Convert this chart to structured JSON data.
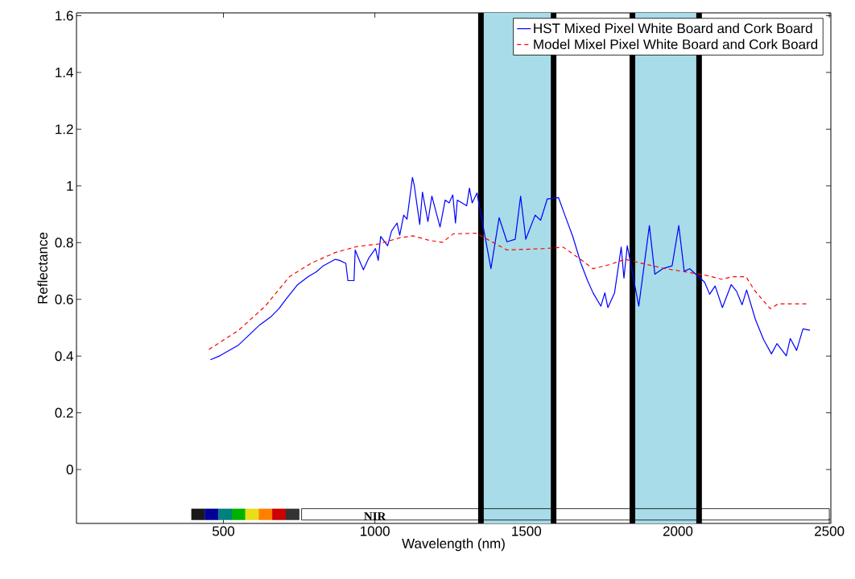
{
  "chart_data": {
    "type": "line",
    "xlabel": "Wavelength (nm)",
    "ylabel": "Reflectance",
    "xlim": [
      15,
      2505
    ],
    "ylim": [
      -0.19,
      1.61
    ],
    "xticks": [
      500,
      1000,
      1500,
      2000,
      2500
    ],
    "yticks": [
      0,
      0.2,
      0.4,
      0.6,
      0.8,
      1,
      1.2,
      1.4,
      1.6
    ],
    "legend": "top right",
    "grid": false,
    "annotations": [
      "NIR"
    ],
    "bands": [
      {
        "axis": "x",
        "from": 1350,
        "to": 1590,
        "color": "#a8dce8"
      },
      {
        "axis": "x",
        "from": 1850,
        "to": 2070,
        "color": "#a8dce8"
      }
    ],
    "series": [
      {
        "name": "HST Mixed Pixel White Board and Cork Board",
        "color": "#0000ff",
        "line_style": "solid",
        "x": [
          457,
          488,
          550,
          620,
          656,
          683,
          709,
          745,
          780,
          807,
          829,
          869,
          882,
          904,
          911,
          931,
          935,
          949,
          962,
          980,
          1002,
          1011,
          1019,
          1042,
          1055,
          1073,
          1082,
          1095,
          1106,
          1124,
          1130,
          1148,
          1157,
          1175,
          1188,
          1215,
          1232,
          1245,
          1257,
          1266,
          1272,
          1303,
          1312,
          1321,
          1337,
          1383,
          1410,
          1436,
          1463,
          1481,
          1498,
          1529,
          1547,
          1569,
          1606,
          1627,
          1653,
          1680,
          1702,
          1720,
          1746,
          1759,
          1769,
          1791,
          1813,
          1822,
          1833,
          1871,
          1906,
          1924,
          1950,
          1981,
          2003,
          2021,
          2039,
          2088,
          2105,
          2123,
          2147,
          2176,
          2194,
          2212,
          2227,
          2256,
          2283,
          2309,
          2327,
          2358,
          2371,
          2392,
          2413,
          2436
        ],
        "values": [
          0.387,
          0.401,
          0.439,
          0.51,
          0.538,
          0.567,
          0.604,
          0.652,
          0.68,
          0.697,
          0.718,
          0.741,
          0.738,
          0.727,
          0.666,
          0.666,
          0.774,
          0.737,
          0.704,
          0.746,
          0.779,
          0.737,
          0.822,
          0.789,
          0.841,
          0.869,
          0.826,
          0.897,
          0.883,
          1.03,
          1.001,
          0.864,
          0.978,
          0.874,
          0.964,
          0.855,
          0.95,
          0.94,
          0.968,
          0.869,
          0.95,
          0.93,
          0.992,
          0.94,
          0.975,
          0.708,
          0.888,
          0.803,
          0.812,
          0.964,
          0.812,
          0.897,
          0.879,
          0.954,
          0.959,
          0.897,
          0.822,
          0.727,
          0.666,
          0.623,
          0.576,
          0.623,
          0.571,
          0.623,
          0.784,
          0.675,
          0.789,
          0.576,
          0.86,
          0.689,
          0.708,
          0.718,
          0.86,
          0.699,
          0.708,
          0.661,
          0.618,
          0.647,
          0.571,
          0.652,
          0.628,
          0.581,
          0.633,
          0.529,
          0.458,
          0.408,
          0.444,
          0.401,
          0.462,
          0.42,
          0.496,
          0.491
        ]
      },
      {
        "name": "Model Mixel Pixel White Board and Cork Board",
        "color": "#ff0000",
        "line_style": "dashed",
        "x": [
          452,
          550,
          638,
          718,
          789,
          869,
          940,
          1011,
          1082,
          1126,
          1179,
          1223,
          1259,
          1334,
          1436,
          1560,
          1622,
          1684,
          1720,
          1773,
          1826,
          1950,
          2092,
          2145,
          2181,
          2225,
          2252,
          2305,
          2331,
          2434
        ],
        "values": [
          0.423,
          0.491,
          0.576,
          0.68,
          0.727,
          0.765,
          0.786,
          0.795,
          0.817,
          0.824,
          0.808,
          0.801,
          0.831,
          0.833,
          0.774,
          0.779,
          0.784,
          0.737,
          0.708,
          0.722,
          0.741,
          0.71,
          0.685,
          0.671,
          0.68,
          0.68,
          0.633,
          0.567,
          0.584,
          0.584
        ]
      }
    ]
  }
}
